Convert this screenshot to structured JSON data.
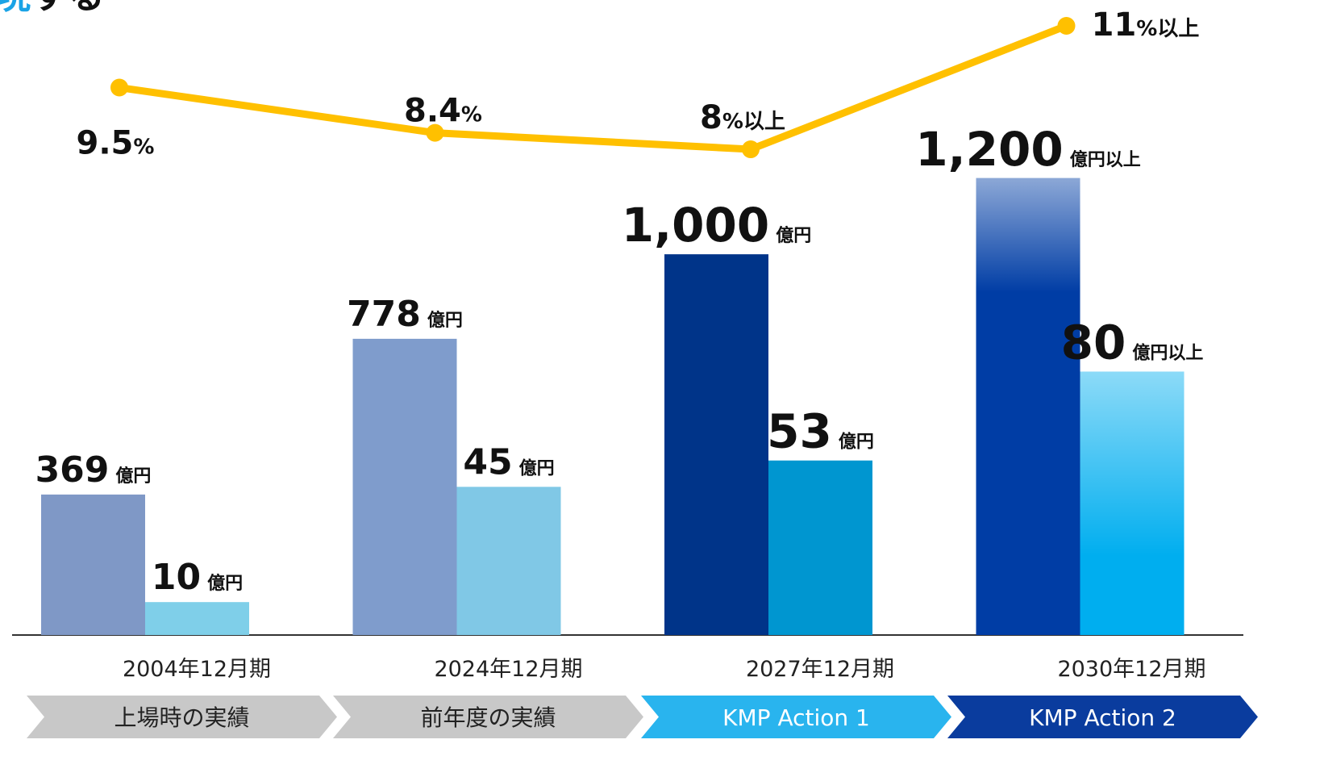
{
  "header": {
    "title_highlight": "現",
    "title_rest": "する"
  },
  "chart_data": {
    "type": "bar",
    "categories": [
      "2004年12月期",
      "2024年12月期",
      "2027年12月期",
      "2030年12月期"
    ],
    "series": [
      {
        "values": [
          369,
          778,
          1000,
          1200
        ],
        "value_labels": [
          "369",
          "778",
          "1,000",
          "1,200"
        ],
        "unit_labels": [
          "億円",
          "億円",
          "億円",
          "億円以上"
        ],
        "colors": [
          "#7f98c6",
          "#7f9ccc",
          "#003489",
          "#003da5"
        ]
      },
      {
        "values": [
          10,
          45,
          53,
          80
        ],
        "unit_labels": [
          "億円",
          "億円",
          "億円",
          "億円以上"
        ],
        "colors": [
          "#7fcfe9",
          "#80c8e6",
          "#0096d0",
          "#00aeef"
        ],
        "axis": "y2"
      },
      {
        "type": "line",
        "values": [
          9.5,
          8.4,
          8,
          11
        ],
        "unit_labels": [
          "%",
          "%",
          "%以上",
          "%以上"
        ],
        "color": "#ffc000",
        "axis": "y3"
      }
    ],
    "ylim": [
      0,
      1600
    ],
    "y2lim": [
      0,
      185
    ],
    "y3lim": [
      -3.8,
      11.0
    ],
    "phases": [
      {
        "label": "上場時の実績",
        "color": "#c8c8c8",
        "text_color": "#222222"
      },
      {
        "label": "前年度の実績",
        "color": "#c8c8c8",
        "text_color": "#222222"
      },
      {
        "label": "KMP Action 1",
        "color": "#29b4ee",
        "text_color": "#ffffff"
      },
      {
        "label": "KMP Action 2",
        "color": "#0a3c9e",
        "text_color": "#ffffff"
      }
    ]
  }
}
